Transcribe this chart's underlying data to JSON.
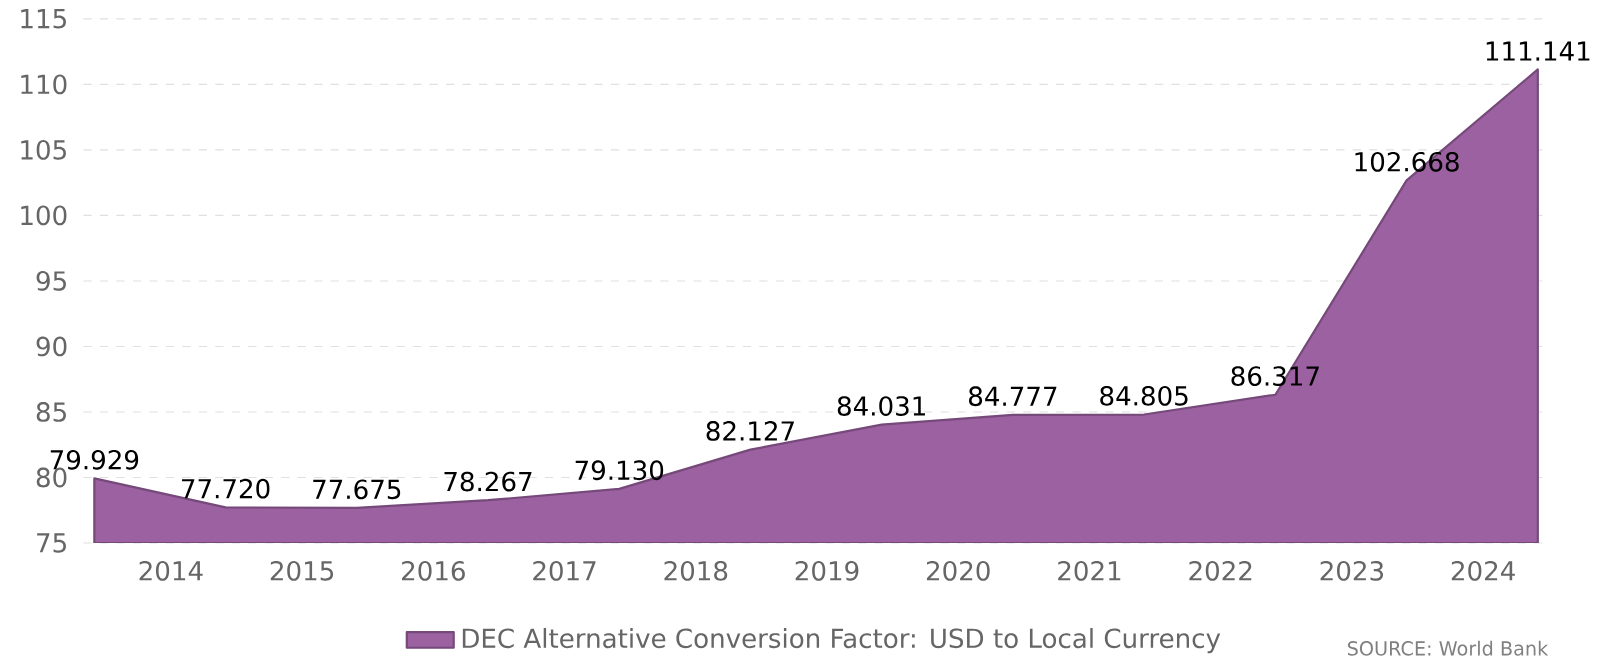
{
  "chart_data": {
    "type": "area",
    "x": [
      "2013-12",
      "2014-12",
      "2015-12",
      "2016-12",
      "2017-12",
      "2018-12",
      "2019-12",
      "2020-12",
      "2021-12",
      "2022-12",
      "2023-12",
      "2024-12"
    ],
    "series": [
      {
        "name": "DEC Alternative Conversion Factor: USD to Local Currency",
        "color": "#9c61a1",
        "values": [
          79.929,
          77.72,
          77.675,
          78.267,
          79.13,
          82.127,
          84.031,
          84.777,
          84.805,
          86.317,
          102.668,
          111.141
        ],
        "value_labels": [
          "79.929",
          "77.720",
          "77.675",
          "78.267",
          "79.130",
          "82.127",
          "84.031",
          "84.777",
          "84.805",
          "86.317",
          "102.668",
          "111.141"
        ]
      }
    ],
    "xlim": [
      "2013-11",
      "2025-01"
    ],
    "xticks": [
      {
        "value": "2014-07",
        "label": "2014"
      },
      {
        "value": "2015-07",
        "label": "2015"
      },
      {
        "value": "2016-07",
        "label": "2016"
      },
      {
        "value": "2017-07",
        "label": "2017"
      },
      {
        "value": "2018-07",
        "label": "2018"
      },
      {
        "value": "2019-07",
        "label": "2019"
      },
      {
        "value": "2020-07",
        "label": "2020"
      },
      {
        "value": "2021-07",
        "label": "2021"
      },
      {
        "value": "2022-07",
        "label": "2022"
      },
      {
        "value": "2023-07",
        "label": "2023"
      },
      {
        "value": "2024-07",
        "label": "2024"
      }
    ],
    "ylim": [
      75,
      115
    ],
    "yticks": [
      75,
      80,
      85,
      90,
      95,
      100,
      105,
      110,
      115
    ],
    "grid": "y",
    "legend": "bottom",
    "annotations": [
      "SOURCE: World Bank"
    ]
  }
}
